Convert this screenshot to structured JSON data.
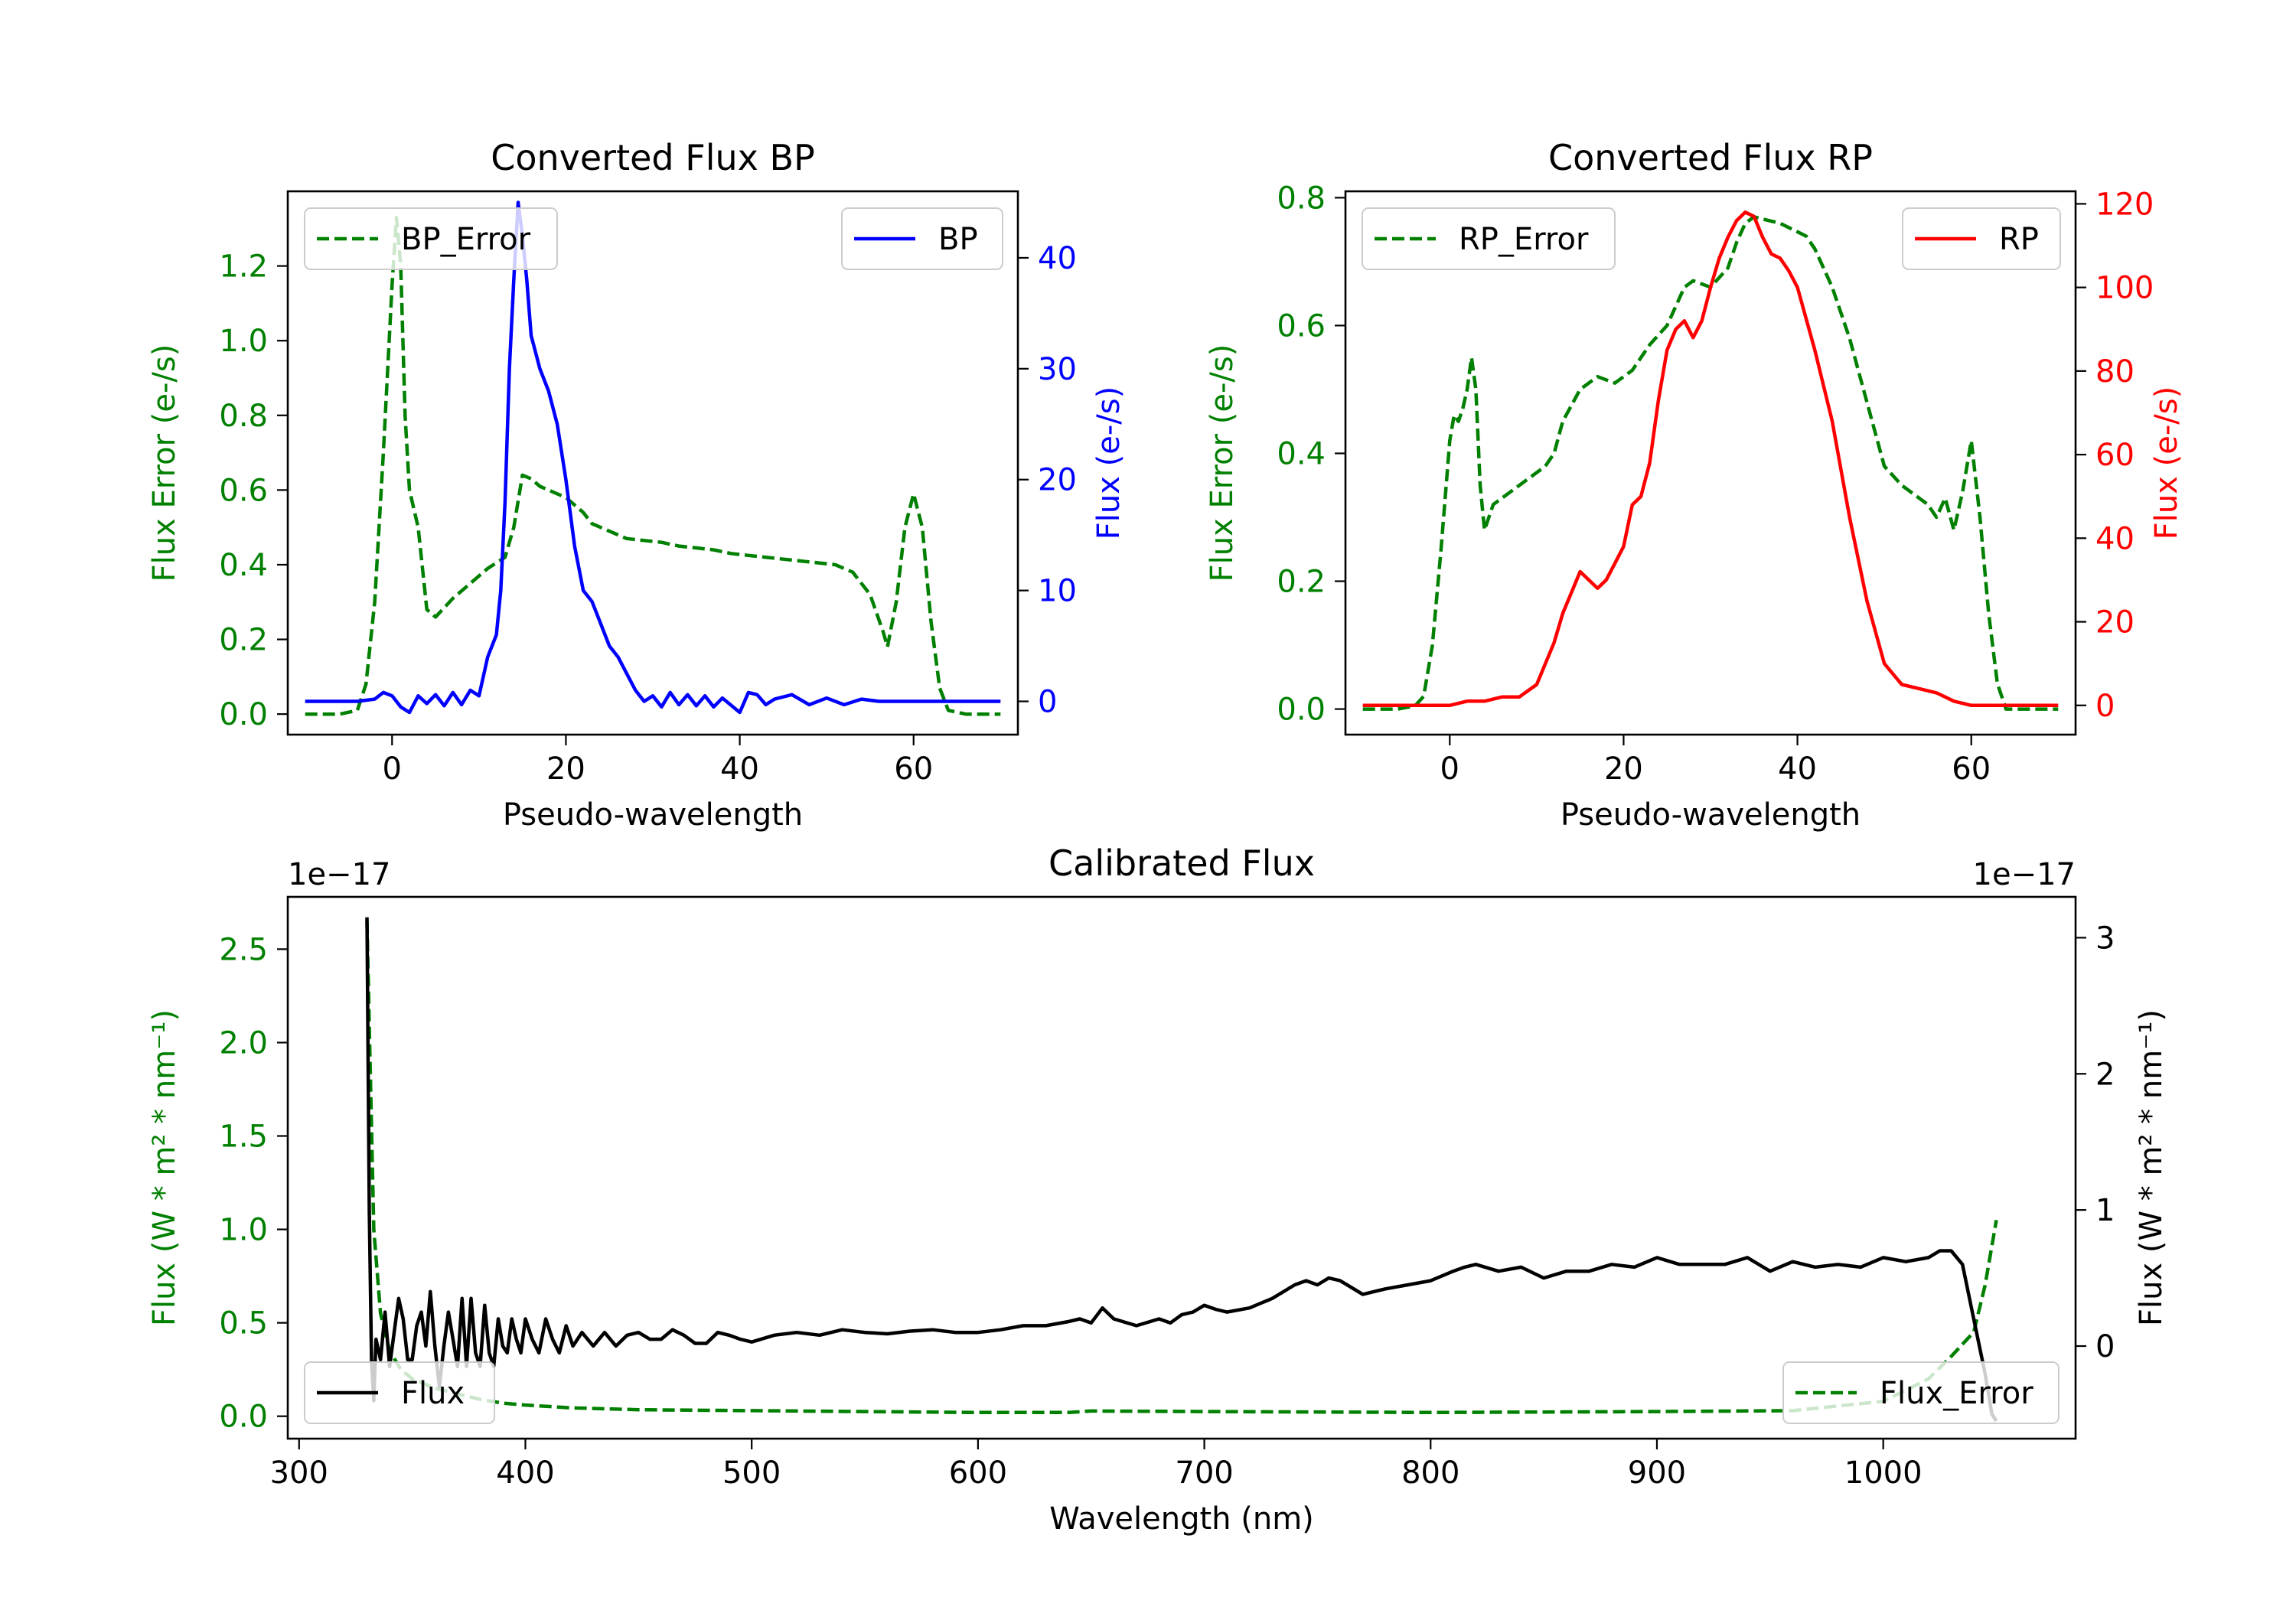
{
  "chart_data": [
    {
      "id": "bp",
      "type": "line",
      "title": "Converted Flux BP",
      "xlabel": "Pseudo-wavelength",
      "xlim": [
        -12,
        72
      ],
      "xticks": [
        0,
        20,
        40,
        60
      ],
      "left_axis": {
        "label": "Flux Error (e-/s)",
        "color": "#008000",
        "ylim": [
          -0.055,
          1.4
        ],
        "ticks": [
          0.0,
          0.2,
          0.4,
          0.6,
          0.8,
          1.0,
          1.2
        ],
        "tick_labels": [
          "0.0",
          "0.2",
          "0.4",
          "0.6",
          "0.8",
          "1.0",
          "1.2"
        ]
      },
      "right_axis": {
        "label": "Flux (e-/s)",
        "color": "#0000ff",
        "ylim": [
          -3,
          46
        ],
        "ticks": [
          0,
          10,
          20,
          30,
          40
        ],
        "tick_labels": [
          "0",
          "10",
          "20",
          "30",
          "40"
        ]
      },
      "series": [
        {
          "name": "BP_Error",
          "axis": "left",
          "color": "#008000",
          "dashed": true,
          "x": [
            -10,
            -6,
            -4,
            -3,
            -2,
            -1,
            0,
            0.5,
            1,
            1.5,
            2,
            3,
            4,
            5,
            7,
            9,
            11,
            13,
            14,
            15,
            16,
            17,
            18,
            19,
            20,
            21,
            22,
            23,
            25,
            27,
            29,
            31,
            33,
            35,
            37,
            39,
            41,
            43,
            45,
            47,
            49,
            51,
            53,
            55,
            56.5,
            57,
            58,
            59,
            60,
            61,
            62,
            63,
            64,
            66,
            68,
            70
          ],
          "y": [
            0.0,
            0.0,
            0.01,
            0.08,
            0.3,
            0.7,
            1.15,
            1.33,
            1.2,
            0.8,
            0.6,
            0.5,
            0.28,
            0.26,
            0.31,
            0.35,
            0.39,
            0.42,
            0.5,
            0.64,
            0.63,
            0.61,
            0.6,
            0.59,
            0.58,
            0.56,
            0.54,
            0.51,
            0.49,
            0.47,
            0.465,
            0.46,
            0.45,
            0.445,
            0.44,
            0.43,
            0.425,
            0.42,
            0.415,
            0.41,
            0.405,
            0.4,
            0.38,
            0.32,
            0.22,
            0.18,
            0.3,
            0.5,
            0.59,
            0.5,
            0.25,
            0.07,
            0.01,
            0.0,
            0.0,
            0.0
          ]
        },
        {
          "name": "BP",
          "axis": "right",
          "color": "#0000ff",
          "dashed": false,
          "x": [
            -10,
            -6,
            -4,
            -2,
            -1,
            0,
            1,
            2,
            3,
            4,
            5,
            6,
            7,
            8,
            9,
            10,
            11,
            12,
            12.5,
            13,
            13.5,
            14,
            14.5,
            15,
            15.5,
            16,
            17,
            18,
            19,
            20,
            21,
            22,
            23,
            24,
            25,
            26,
            27,
            28,
            29,
            30,
            31,
            32,
            33,
            34,
            35,
            36,
            37,
            38,
            40,
            41,
            42,
            43,
            44,
            46,
            48,
            50,
            52,
            54,
            56,
            58,
            60,
            62,
            64,
            66,
            68,
            70
          ],
          "y": [
            0,
            0,
            0,
            0.2,
            0.8,
            0.5,
            -0.5,
            -1,
            0.5,
            -0.2,
            0.6,
            -0.4,
            0.8,
            -0.3,
            1,
            0.5,
            4,
            6,
            10,
            18,
            30,
            38,
            45,
            42,
            38,
            33,
            30,
            28,
            25,
            20,
            14,
            10,
            9,
            7,
            5,
            4,
            2.5,
            1,
            0,
            0.5,
            -0.5,
            0.8,
            -0.3,
            0.6,
            -0.4,
            0.5,
            -0.5,
            0.3,
            -1,
            0.8,
            0.6,
            -0.3,
            0.2,
            0.6,
            -0.3,
            0.3,
            -0.3,
            0.2,
            0,
            0,
            0,
            0,
            0,
            0,
            0,
            0
          ]
        }
      ],
      "legend": [
        {
          "label": "BP_Error",
          "position": "upper-left"
        },
        {
          "label": "BP",
          "position": "upper-right"
        }
      ]
    },
    {
      "id": "rp",
      "type": "line",
      "title": "Converted Flux RP",
      "xlabel": "Pseudo-wavelength",
      "xlim": [
        -12,
        72
      ],
      "xticks": [
        0,
        20,
        40,
        60
      ],
      "left_axis": {
        "label": "Flux Error (e-/s)",
        "color": "#008000",
        "ylim": [
          -0.04,
          0.81
        ],
        "ticks": [
          0.0,
          0.2,
          0.4,
          0.6,
          0.8
        ],
        "tick_labels": [
          "0.0",
          "0.2",
          "0.4",
          "0.6",
          "0.8"
        ]
      },
      "right_axis": {
        "label": "Flux (e-/s)",
        "color": "#ff0000",
        "ylim": [
          -7,
          123
        ],
        "ticks": [
          0,
          20,
          40,
          60,
          80,
          100,
          120
        ],
        "tick_labels": [
          "0",
          "20",
          "40",
          "60",
          "80",
          "100",
          "120"
        ]
      },
      "series": [
        {
          "name": "RP_Error",
          "axis": "left",
          "color": "#008000",
          "dashed": true,
          "x": [
            -10,
            -6,
            -4,
            -3,
            -2,
            -1,
            0,
            0.5,
            1,
            1.5,
            2,
            2.5,
            3,
            3.5,
            4,
            5,
            7,
            9,
            11,
            12,
            13,
            15,
            17,
            19,
            21,
            23,
            25,
            27,
            28,
            30,
            32,
            33,
            34,
            35,
            38,
            41,
            42,
            44,
            46,
            48,
            50,
            52,
            54,
            55,
            56,
            57,
            58,
            59,
            60,
            61,
            62,
            63,
            64,
            66,
            70
          ],
          "y": [
            0.0,
            0.0,
            0.005,
            0.02,
            0.1,
            0.25,
            0.42,
            0.46,
            0.45,
            0.47,
            0.5,
            0.55,
            0.5,
            0.35,
            0.28,
            0.32,
            0.34,
            0.36,
            0.38,
            0.4,
            0.45,
            0.5,
            0.52,
            0.51,
            0.53,
            0.57,
            0.6,
            0.66,
            0.67,
            0.66,
            0.69,
            0.73,
            0.76,
            0.77,
            0.76,
            0.74,
            0.72,
            0.66,
            0.58,
            0.48,
            0.38,
            0.35,
            0.33,
            0.32,
            0.3,
            0.33,
            0.28,
            0.34,
            0.42,
            0.3,
            0.15,
            0.04,
            0.0,
            0.0,
            0.0
          ]
        },
        {
          "name": "RP",
          "axis": "right",
          "color": "#ff0000",
          "dashed": false,
          "x": [
            -10,
            -4,
            -2,
            0,
            2,
            4,
            6,
            8,
            10,
            12,
            13,
            14,
            15,
            16,
            17,
            18,
            19,
            20,
            21,
            22,
            23,
            24,
            25,
            26,
            27,
            28,
            29,
            30,
            31,
            32,
            33,
            34,
            35,
            36,
            37,
            38,
            39,
            40,
            42,
            44,
            46,
            48,
            50,
            52,
            54,
            56,
            58,
            60,
            64,
            70
          ],
          "y": [
            0,
            0,
            0,
            0,
            1,
            1,
            2,
            2,
            5,
            15,
            22,
            27,
            32,
            30,
            28,
            30,
            34,
            38,
            48,
            50,
            58,
            73,
            85,
            90,
            92,
            88,
            92,
            100,
            107,
            112,
            116,
            118,
            117,
            112,
            108,
            107,
            104,
            100,
            85,
            68,
            45,
            25,
            10,
            5,
            4,
            3,
            1,
            0,
            0,
            0
          ]
        }
      ],
      "legend": [
        {
          "label": "RP_Error",
          "position": "upper-left"
        },
        {
          "label": "RP",
          "position": "upper-right"
        }
      ]
    },
    {
      "id": "cal",
      "type": "line",
      "title": "Calibrated Flux",
      "xlabel": "Wavelength (nm)",
      "xlim": [
        295,
        1085
      ],
      "xticks": [
        300,
        400,
        500,
        600,
        700,
        800,
        900,
        1000
      ],
      "left_axis": {
        "label": "Flux (W * m² * nm⁻¹)",
        "color": "#008000",
        "offset_text": "1e−17",
        "ylim": [
          -0.12,
          2.78
        ],
        "ticks": [
          0.0,
          0.5,
          1.0,
          1.5,
          2.0,
          2.5
        ],
        "tick_labels": [
          "0.0",
          "0.5",
          "1.0",
          "1.5",
          "2.0",
          "2.5"
        ]
      },
      "right_axis": {
        "label": "Flux (W * m² * nm⁻¹)",
        "color": "#000000",
        "offset_text": "1e−17",
        "ylim": [
          -0.68,
          3.3
        ],
        "ticks": [
          0,
          1,
          2,
          3
        ],
        "tick_labels": [
          "0",
          "1",
          "2",
          "3"
        ]
      },
      "series": [
        {
          "name": "Flux_Error",
          "axis": "left",
          "color": "#008000",
          "dashed": true,
          "x": [
            330,
            333,
            336,
            340,
            345,
            350,
            360,
            370,
            380,
            390,
            400,
            420,
            450,
            500,
            550,
            600,
            640,
            650,
            700,
            800,
            900,
            960,
            1000,
            1020,
            1030,
            1040,
            1045,
            1050
          ],
          "y": [
            2.65,
            1.0,
            0.55,
            0.35,
            0.25,
            0.2,
            0.15,
            0.12,
            0.09,
            0.07,
            0.06,
            0.045,
            0.035,
            0.03,
            0.025,
            0.02,
            0.02,
            0.028,
            0.025,
            0.02,
            0.025,
            0.03,
            0.08,
            0.2,
            0.32,
            0.45,
            0.7,
            1.05
          ]
        },
        {
          "name": "Flux",
          "axis": "right",
          "color": "#000000",
          "dashed": false,
          "x": [
            330,
            331,
            332,
            333,
            334,
            336,
            338,
            340,
            342,
            344,
            346,
            348,
            350,
            352,
            354,
            356,
            358,
            360,
            362,
            364,
            366,
            368,
            370,
            372,
            374,
            376,
            378,
            380,
            382,
            384,
            386,
            388,
            390,
            392,
            394,
            396,
            398,
            400,
            403,
            406,
            409,
            412,
            415,
            418,
            421,
            425,
            430,
            435,
            440,
            445,
            450,
            455,
            460,
            465,
            470,
            475,
            480,
            485,
            490,
            495,
            500,
            510,
            520,
            530,
            540,
            550,
            560,
            570,
            580,
            590,
            600,
            610,
            620,
            630,
            640,
            645,
            650,
            655,
            660,
            670,
            680,
            685,
            690,
            695,
            700,
            705,
            710,
            720,
            730,
            740,
            745,
            750,
            755,
            760,
            770,
            780,
            790,
            800,
            810,
            815,
            820,
            830,
            840,
            850,
            860,
            870,
            880,
            890,
            900,
            910,
            920,
            930,
            940,
            950,
            960,
            970,
            980,
            990,
            1000,
            1010,
            1020,
            1025,
            1030,
            1035,
            1040,
            1045,
            1048,
            1050
          ],
          "y": [
            3.15,
            1.0,
            -0.1,
            -0.4,
            0.05,
            -0.1,
            0.25,
            -0.15,
            0.1,
            0.35,
            0.2,
            -0.1,
            -0.1,
            0.15,
            0.25,
            0.0,
            0.4,
            0.0,
            -0.3,
            0.0,
            0.25,
            0.05,
            -0.15,
            0.35,
            -0.15,
            0.35,
            -0.05,
            -0.15,
            0.3,
            -0.05,
            -0.15,
            0.2,
            0.0,
            -0.05,
            0.2,
            0.05,
            -0.05,
            0.2,
            0.05,
            -0.05,
            0.2,
            0.05,
            -0.05,
            0.15,
            0.0,
            0.1,
            0.0,
            0.1,
            0.0,
            0.08,
            0.1,
            0.05,
            0.05,
            0.12,
            0.08,
            0.02,
            0.02,
            0.1,
            0.08,
            0.05,
            0.03,
            0.08,
            0.1,
            0.08,
            0.12,
            0.1,
            0.09,
            0.11,
            0.12,
            0.1,
            0.1,
            0.12,
            0.15,
            0.15,
            0.18,
            0.2,
            0.17,
            0.28,
            0.2,
            0.15,
            0.2,
            0.17,
            0.23,
            0.25,
            0.3,
            0.27,
            0.25,
            0.28,
            0.35,
            0.45,
            0.48,
            0.45,
            0.5,
            0.48,
            0.38,
            0.42,
            0.45,
            0.48,
            0.55,
            0.58,
            0.6,
            0.55,
            0.58,
            0.5,
            0.55,
            0.55,
            0.6,
            0.58,
            0.65,
            0.6,
            0.6,
            0.6,
            0.65,
            0.55,
            0.62,
            0.58,
            0.6,
            0.58,
            0.65,
            0.62,
            0.65,
            0.7,
            0.7,
            0.6,
            0.2,
            -0.2,
            -0.5,
            -0.55
          ]
        }
      ],
      "legend": [
        {
          "label": "Flux",
          "position": "lower-left"
        },
        {
          "label": "Flux_Error",
          "position": "lower-right"
        }
      ]
    }
  ]
}
